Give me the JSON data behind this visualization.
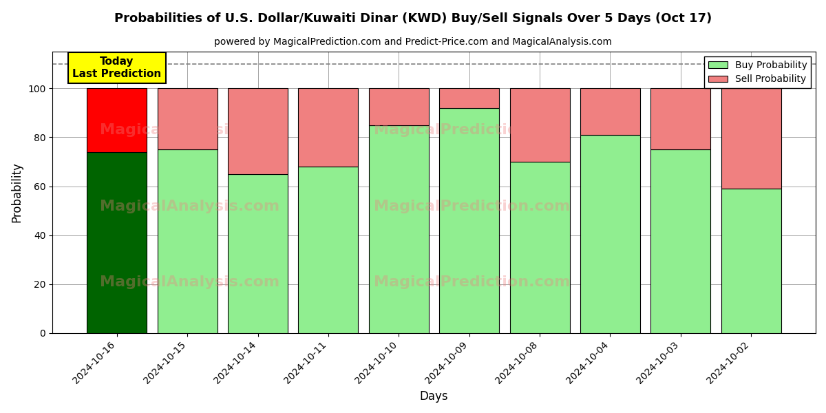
{
  "title": "Probabilities of U.S. Dollar/Kuwaiti Dinar (KWD) Buy/Sell Signals Over 5 Days (Oct 17)",
  "subtitle": "powered by MagicalPrediction.com and Predict-Price.com and MagicalAnalysis.com",
  "xlabel": "Days",
  "ylabel": "Probability",
  "categories": [
    "2024-10-16",
    "2024-10-15",
    "2024-10-14",
    "2024-10-11",
    "2024-10-10",
    "2024-10-09",
    "2024-10-08",
    "2024-10-04",
    "2024-10-03",
    "2024-10-02"
  ],
  "buy_values": [
    74,
    75,
    65,
    68,
    85,
    92,
    70,
    81,
    75,
    59
  ],
  "sell_values": [
    26,
    25,
    35,
    32,
    15,
    8,
    30,
    19,
    25,
    41
  ],
  "today_buy_color": "#006400",
  "today_sell_color": "#FF0000",
  "buy_color": "#90EE90",
  "sell_color": "#F08080",
  "today_label_bg": "#FFFF00",
  "today_label_text": "Today\nLast Prediction",
  "legend_buy": "Buy Probability",
  "legend_sell": "Sell Probability",
  "ylim": [
    0,
    115
  ],
  "dashed_line_y": 110,
  "bar_width": 0.85,
  "watermark_color": "#F08080",
  "watermark_alpha": 0.35,
  "title_fontsize": 13,
  "subtitle_fontsize": 10
}
